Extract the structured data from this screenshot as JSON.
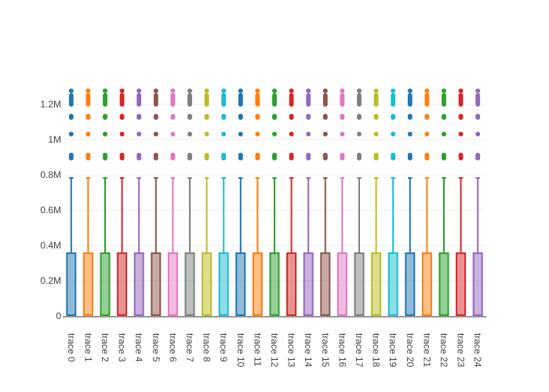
{
  "chart_data": {
    "type": "box",
    "title": "",
    "xlabel": "",
    "ylabel": "",
    "ylim": [
      -0.01,
      1.3
    ],
    "y_unit": "M",
    "y_ticks": [
      0,
      0.2,
      0.4,
      0.6,
      0.8,
      1.0,
      1.2
    ],
    "y_tick_labels": [
      "0",
      "0.2M",
      "0.4M",
      "0.6M",
      "0.8M",
      "1M",
      "1.2M"
    ],
    "grid": true,
    "legend": "none",
    "categories": [
      "trace 0",
      "trace 1",
      "trace 2",
      "trace 3",
      "trace 4",
      "trace 5",
      "trace 6",
      "trace 7",
      "trace 8",
      "trace 9",
      "trace 10",
      "trace 11",
      "trace 12",
      "trace 13",
      "trace 14",
      "trace 15",
      "trace 16",
      "trace 17",
      "trace 18",
      "trace 19",
      "trace 20",
      "trace 21",
      "trace 22",
      "trace 23",
      "trace 24"
    ],
    "colors": [
      "#1f77b4",
      "#ff7f0e",
      "#2ca02c",
      "#d62728",
      "#9467bd",
      "#8c564b",
      "#e377c2",
      "#7f7f7f",
      "#bcbd22",
      "#17becf",
      "#1f77b4",
      "#ff7f0e",
      "#2ca02c",
      "#d62728",
      "#9467bd",
      "#8c564b",
      "#e377c2",
      "#7f7f7f",
      "#bcbd22",
      "#17becf",
      "#1f77b4",
      "#ff7f0e",
      "#2ca02c",
      "#d62728",
      "#9467bd"
    ],
    "box_stats": {
      "lower_fence": 0.0,
      "q1": 0.002,
      "median": 0.005,
      "q3": 0.356,
      "upper_fence": 0.782
    },
    "outliers": [
      0.895,
      0.905,
      0.912,
      1.031,
      1.125,
      1.133,
      1.2,
      1.21,
      1.22,
      1.23,
      1.24,
      1.25,
      1.276
    ]
  }
}
